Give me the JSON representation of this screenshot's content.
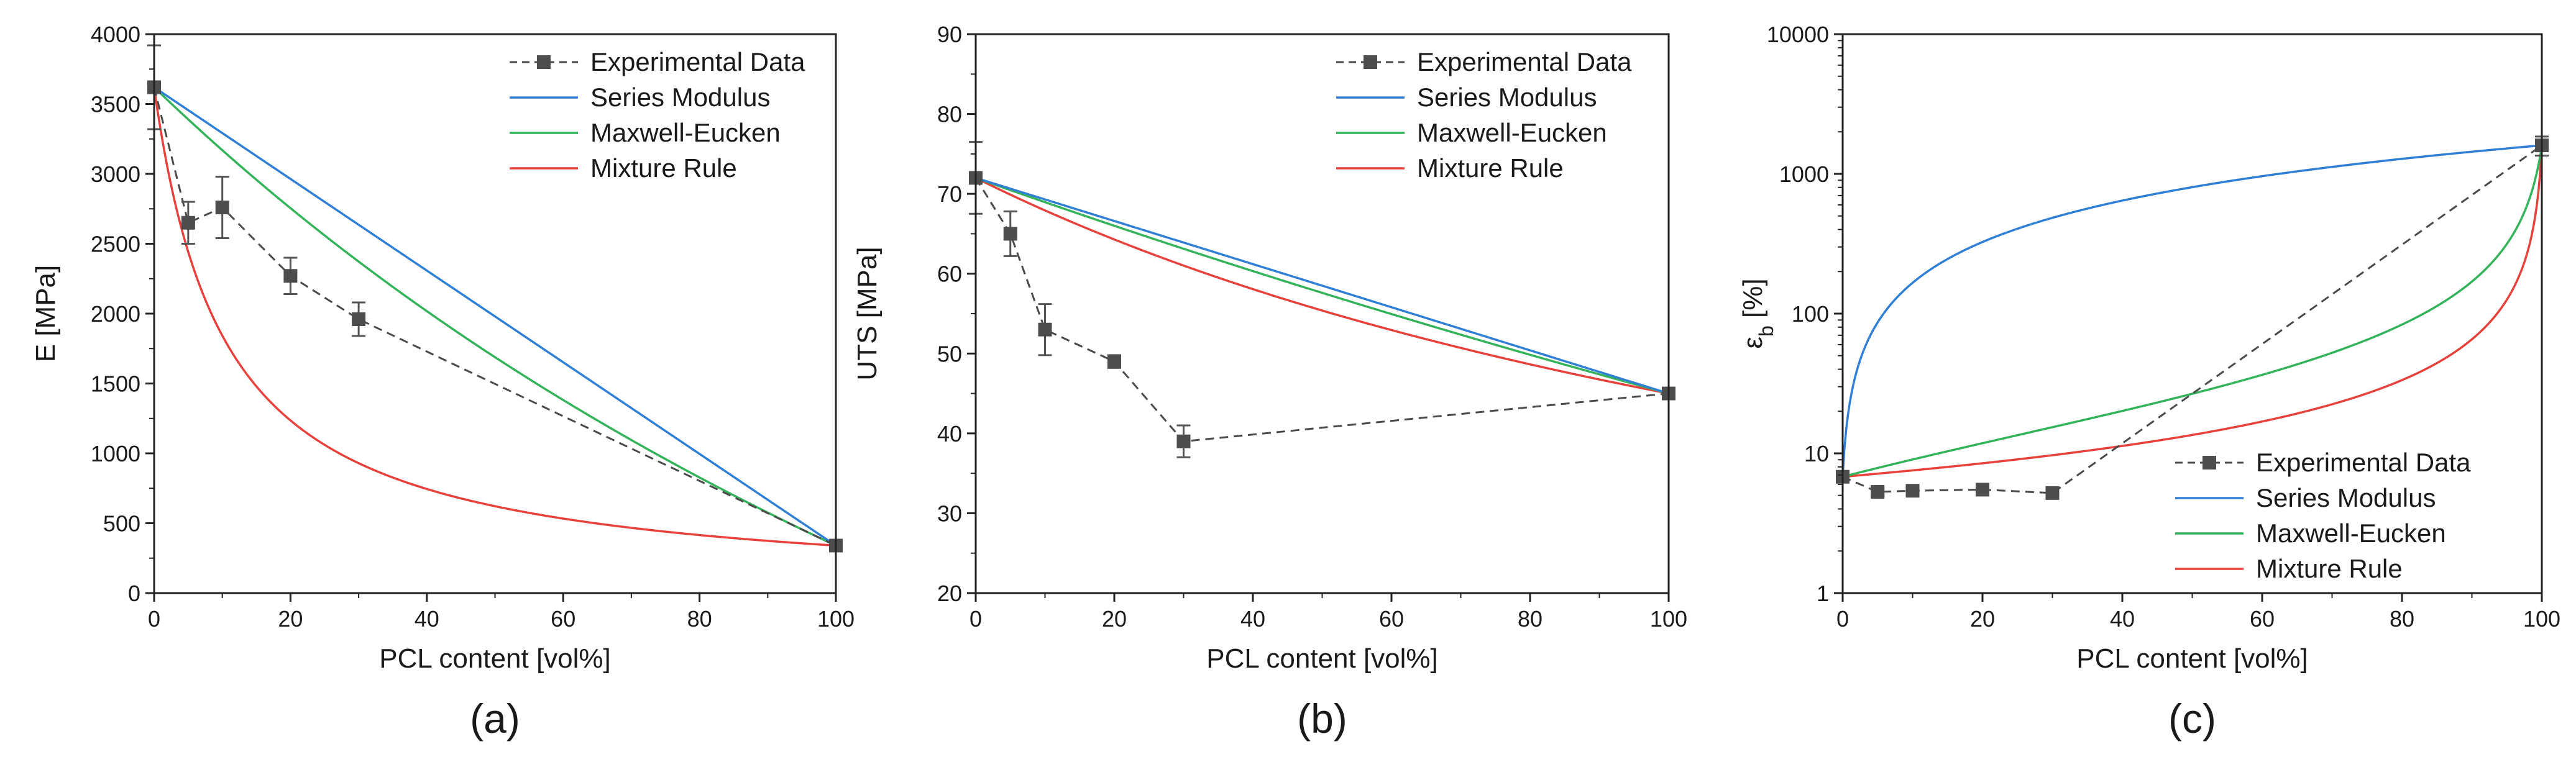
{
  "chart_data": [
    {
      "type": "line",
      "panel_label": "(a)",
      "xlabel": "PCL content [vol%]",
      "ylabel": "E [MPa]",
      "xlim": [
        0,
        100
      ],
      "ylim": [
        0,
        4000
      ],
      "yscale": "linear",
      "x_ticks": [
        0,
        20,
        40,
        60,
        80,
        100
      ],
      "y_ticks": [
        0,
        500,
        1000,
        1500,
        2000,
        2500,
        3000,
        3500,
        4000
      ],
      "legend_position": "top-right",
      "experimental": {
        "name": "Experimental Data",
        "x": [
          0,
          5,
          10,
          20,
          30,
          100
        ],
        "y": [
          3620,
          2650,
          2760,
          2270,
          1960,
          340
        ],
        "err": [
          300,
          150,
          220,
          130,
          120,
          40
        ]
      },
      "models": [
        {
          "name": "Series Modulus",
          "color": "#2f7fd6",
          "kind": "voigt"
        },
        {
          "name": "Maxwell-Eucken",
          "color": "#34b45a",
          "kind": "maxwell"
        },
        {
          "name": "Mixture Rule",
          "color": "#e8413c",
          "kind": "reuss"
        }
      ],
      "model_endpoints": {
        "y_at_0": 3620,
        "y_at_100": 340
      }
    },
    {
      "type": "line",
      "panel_label": "(b)",
      "xlabel": "PCL content [vol%]",
      "ylabel": "UTS [MPa]",
      "xlim": [
        0,
        100
      ],
      "ylim": [
        20,
        90
      ],
      "yscale": "linear",
      "x_ticks": [
        0,
        20,
        40,
        60,
        80,
        100
      ],
      "y_ticks": [
        20,
        30,
        40,
        50,
        60,
        70,
        80,
        90
      ],
      "legend_position": "top-right",
      "experimental": {
        "name": "Experimental Data",
        "x": [
          0,
          5,
          10,
          20,
          30,
          100
        ],
        "y": [
          72,
          65,
          53,
          49,
          39,
          45
        ],
        "err": [
          4.5,
          2.8,
          3.2,
          0.8,
          2.0,
          0.5
        ]
      },
      "models": [
        {
          "name": "Series Modulus",
          "color": "#2f7fd6",
          "kind": "voigt"
        },
        {
          "name": "Maxwell-Eucken",
          "color": "#34b45a",
          "kind": "maxwell"
        },
        {
          "name": "Mixture Rule",
          "color": "#e8413c",
          "kind": "reuss"
        }
      ],
      "model_endpoints": {
        "y_at_0": 72,
        "y_at_100": 45
      }
    },
    {
      "type": "line",
      "panel_label": "(c)",
      "xlabel": "PCL content [vol%]",
      "ylabel": "εb [%]",
      "ylabel_main": "ε",
      "ylabel_sub": "b",
      "ylabel_suffix": " [%]",
      "xlim": [
        0,
        100
      ],
      "ylim": [
        1,
        10000
      ],
      "yscale": "log",
      "x_ticks": [
        0,
        20,
        40,
        60,
        80,
        100
      ],
      "y_ticks": [
        1,
        10,
        100,
        1000,
        10000
      ],
      "legend_position": "bottom-right",
      "experimental": {
        "name": "Experimental Data",
        "x": [
          0,
          5,
          10,
          20,
          30,
          100
        ],
        "y": [
          6.8,
          5.3,
          5.4,
          5.5,
          5.2,
          1600
        ],
        "err": [
          0.5,
          0.3,
          0.3,
          0.3,
          0.3,
          250
        ]
      },
      "models": [
        {
          "name": "Series Modulus",
          "color": "#2f7fd6",
          "kind": "voigt"
        },
        {
          "name": "Maxwell-Eucken",
          "color": "#34b45a",
          "kind": "maxwell"
        },
        {
          "name": "Mixture Rule",
          "color": "#e8413c",
          "kind": "reuss"
        }
      ],
      "model_endpoints": {
        "y_at_0": 6.8,
        "y_at_100": 1600
      }
    }
  ]
}
